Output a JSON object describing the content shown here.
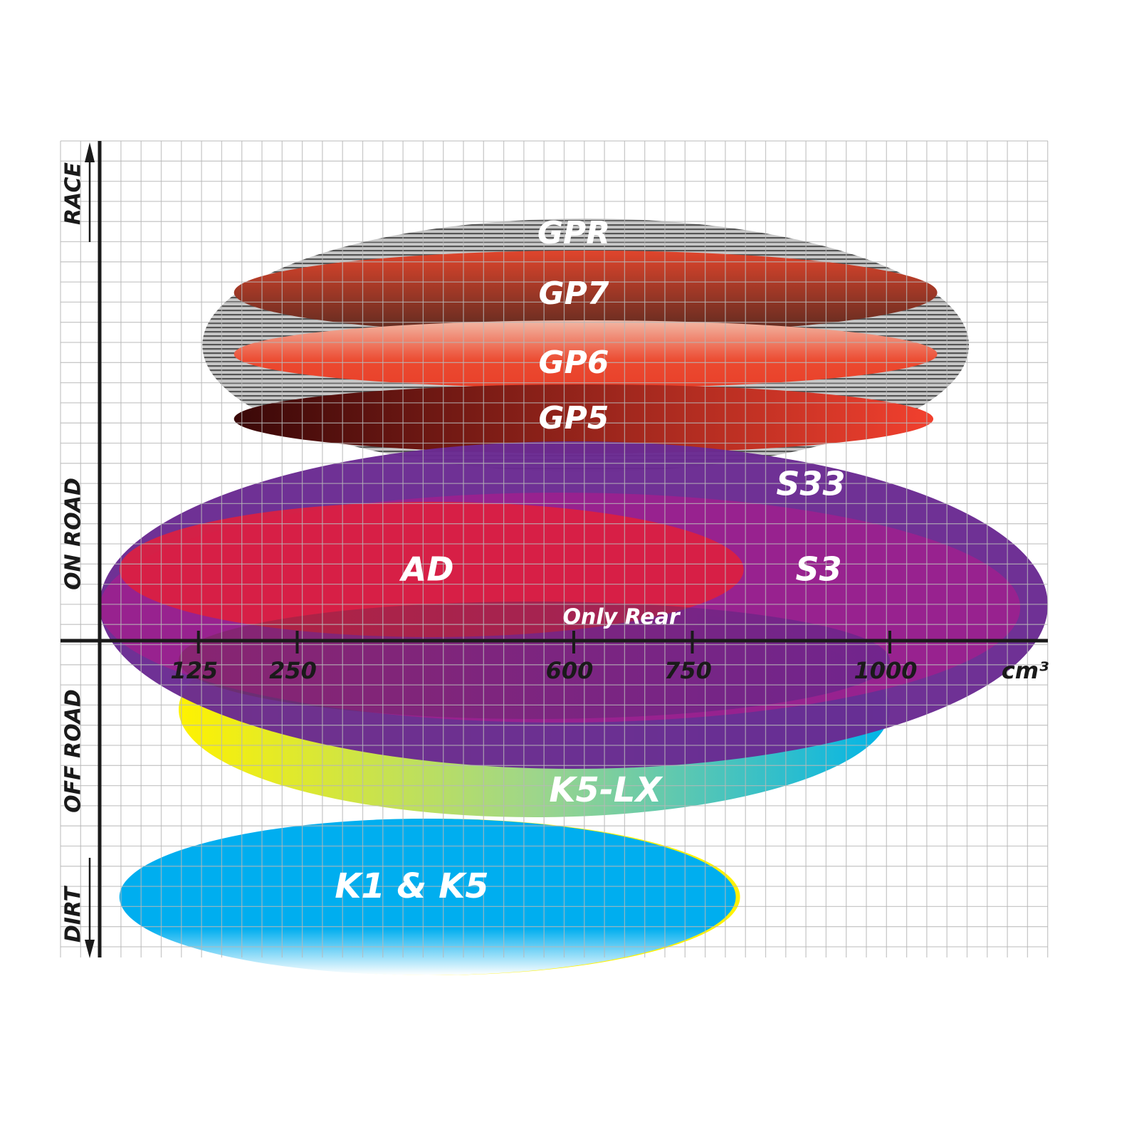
{
  "chart_data": {
    "type": "range-ellipses",
    "x_unit": "cm³",
    "x_ticks": [
      125,
      250,
      600,
      750,
      1000
    ],
    "y_categories": [
      "RACE",
      "ON ROAD",
      "OFF ROAD",
      "DIRT"
    ],
    "grid": true,
    "products": [
      {
        "key": "gpr",
        "name": "GPR",
        "cc_range": [
          130,
          1100
        ],
        "category": "RACE",
        "color": "#9a9a9a"
      },
      {
        "key": "gp7",
        "name": "GP7",
        "cc_range": [
          170,
          1060
        ],
        "category": "RACE",
        "color": "#8a3a24"
      },
      {
        "key": "gp6",
        "name": "GP6",
        "cc_range": [
          170,
          1060
        ],
        "category": "RACE",
        "color": "#e8452e"
      },
      {
        "key": "gp5",
        "name": "GP5",
        "cc_range": [
          170,
          1055
        ],
        "category": "RACE",
        "color": "#a01e1e"
      },
      {
        "key": "k5lx",
        "name": "K5-LX",
        "cc_range": [
          100,
          1000
        ],
        "category": "OFF ROAD",
        "color": "#19c0d8"
      },
      {
        "key": "s33",
        "name": "S33",
        "cc_range": [
          0,
          1200
        ],
        "category": "ON ROAD",
        "color": "#6a2a92"
      },
      {
        "key": "s3",
        "name": "S3",
        "cc_range": [
          0,
          1165
        ],
        "category": "ON ROAD",
        "color": "#a0208e"
      },
      {
        "key": "ad",
        "name": "AD",
        "cc_range": [
          25,
          815
        ],
        "category": "ON ROAD",
        "color": "#dc2040"
      },
      {
        "key": "onlyrear",
        "name": "Only Rear",
        "cc_range": [
          100,
          1000
        ],
        "category": "ON ROAD / OFF ROAD",
        "color": "#8a2a6a"
      },
      {
        "key": "k1k5",
        "name": "K1 & K5",
        "cc_range": [
          25,
          805
        ],
        "category": "DIRT",
        "color": "#00aeef"
      }
    ]
  }
}
